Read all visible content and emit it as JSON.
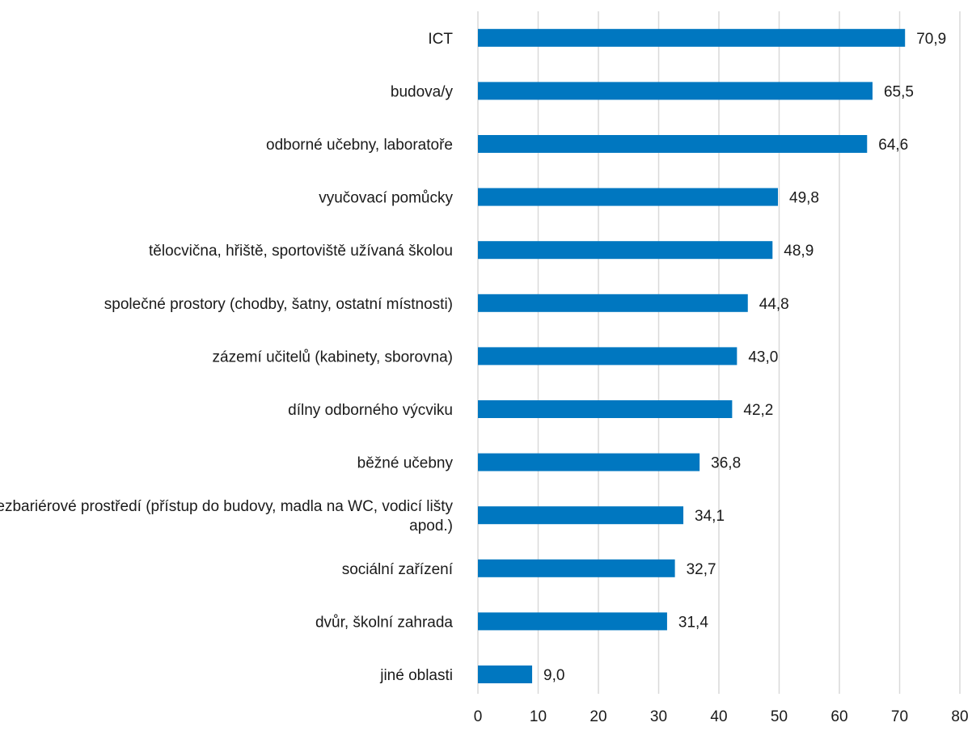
{
  "chart_data": {
    "type": "bar",
    "orientation": "horizontal",
    "title": "",
    "xlabel": "",
    "ylabel": "",
    "xlim": [
      0,
      80
    ],
    "x_ticks": [
      0,
      10,
      20,
      30,
      40,
      50,
      60,
      70,
      80
    ],
    "grid": true,
    "legend": "none",
    "bar_color": "#0077c0",
    "grid_color": "#d9d9d9",
    "value_labels": [
      "70,9",
      "65,5",
      "64,6",
      "49,8",
      "48,9",
      "44,8",
      "43,0",
      "42,2",
      "36,8",
      "34,1",
      "32,7",
      "31,4",
      "9,0"
    ],
    "categories": [
      [
        "ICT"
      ],
      [
        "budova/y"
      ],
      [
        "odborné učebny, laboratoře"
      ],
      [
        "vyučovací pomůcky"
      ],
      [
        "tělocvična, hřiště, sportoviště užívaná školou"
      ],
      [
        "společné prostory (chodby, šatny, ostatní místnosti)"
      ],
      [
        "zázemí učitelů (kabinety, sborovna)"
      ],
      [
        "dílny odborného výcviku"
      ],
      [
        "běžné učebny"
      ],
      [
        "bezbariérové prostředí (přístup do budovy, madla na WC, vodicí lišty",
        "apod.)"
      ],
      [
        "sociální zařízení"
      ],
      [
        "dvůr, školní zahrada"
      ],
      [
        "jiné oblasti"
      ]
    ],
    "values": [
      70.9,
      65.5,
      64.6,
      49.8,
      48.9,
      44.8,
      43.0,
      42.2,
      36.8,
      34.1,
      32.7,
      31.4,
      9.0
    ]
  }
}
